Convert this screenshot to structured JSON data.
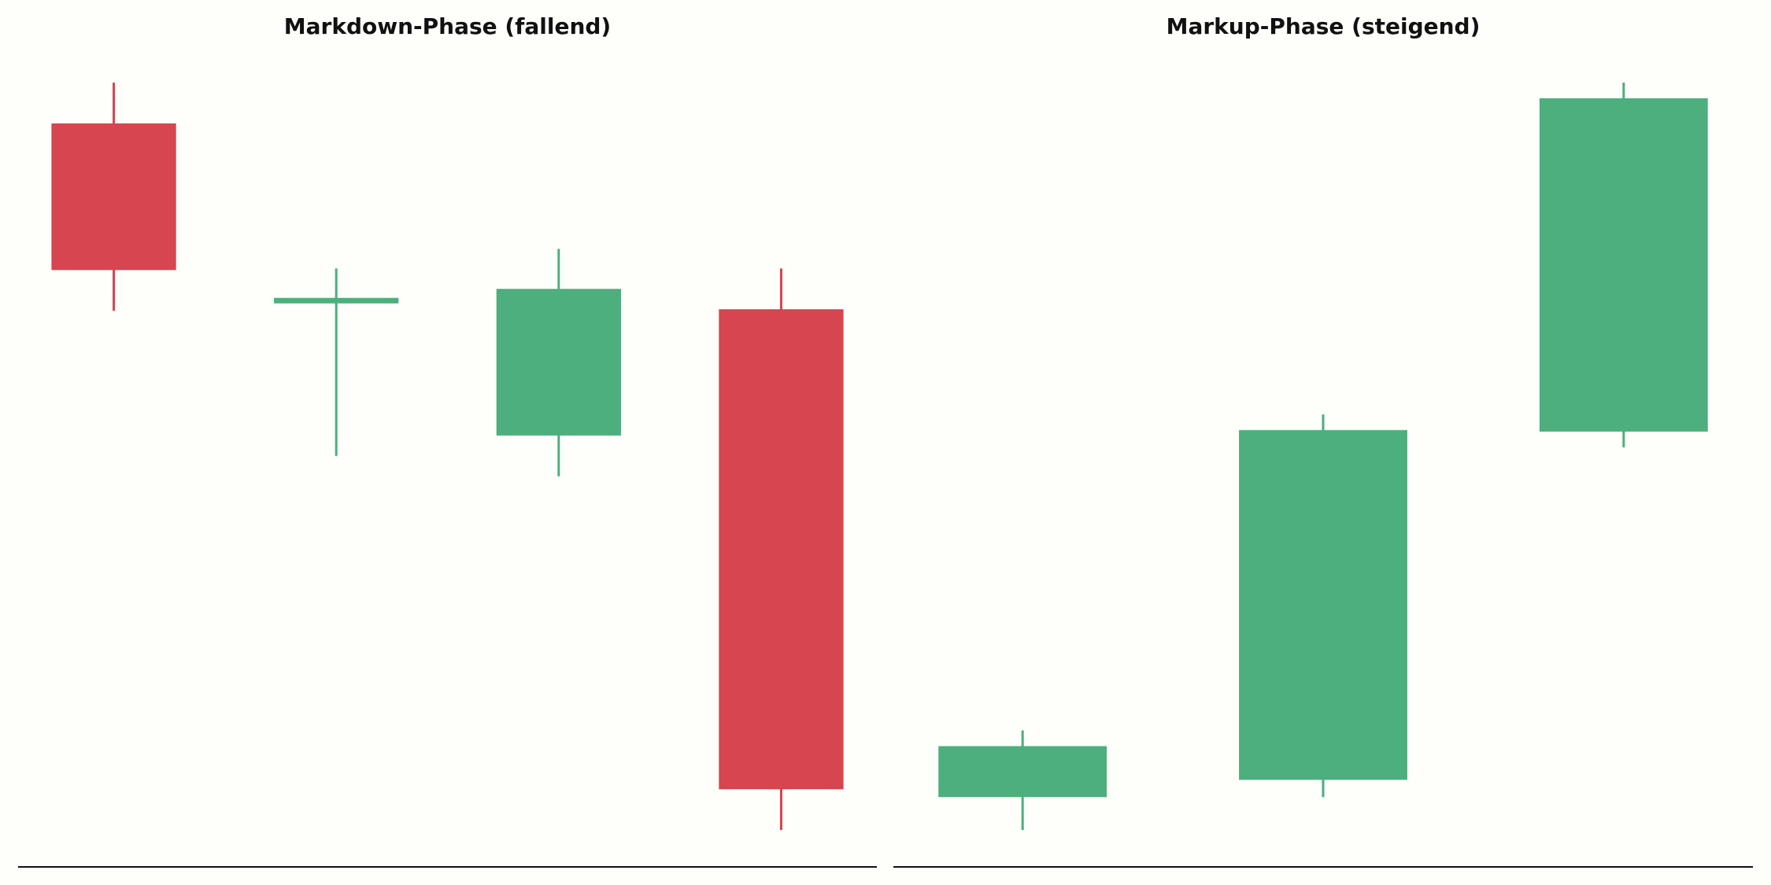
{
  "chart_data": [
    {
      "type": "candlestick",
      "title": "Markdown-Phase (fallend)",
      "categories": [
        null,
        null,
        null,
        null
      ],
      "open": [
        94.8,
        72.2,
        55.0,
        71.1
      ],
      "high": [
        100,
        76.3,
        78.8,
        76.3
      ],
      "low": [
        70.9,
        52.4,
        49.8,
        4.7
      ],
      "close": [
        76.1,
        72.2,
        73.7,
        9.9
      ],
      "ylim": [
        0,
        100
      ],
      "up_color": "#4caf7d",
      "down_color": "#d64550"
    },
    {
      "type": "candlestick",
      "title": "Markup-Phase (steigend)",
      "categories": [
        null,
        null,
        null
      ],
      "open": [
        8.9,
        11.1,
        55.5
      ],
      "high": [
        17.4,
        57.7,
        100
      ],
      "low": [
        4.7,
        8.9,
        53.5
      ],
      "close": [
        15.4,
        55.7,
        98.0
      ],
      "ylim": [
        0,
        100
      ],
      "up_color": "#4caf7d",
      "down_color": "#d64550"
    }
  ]
}
